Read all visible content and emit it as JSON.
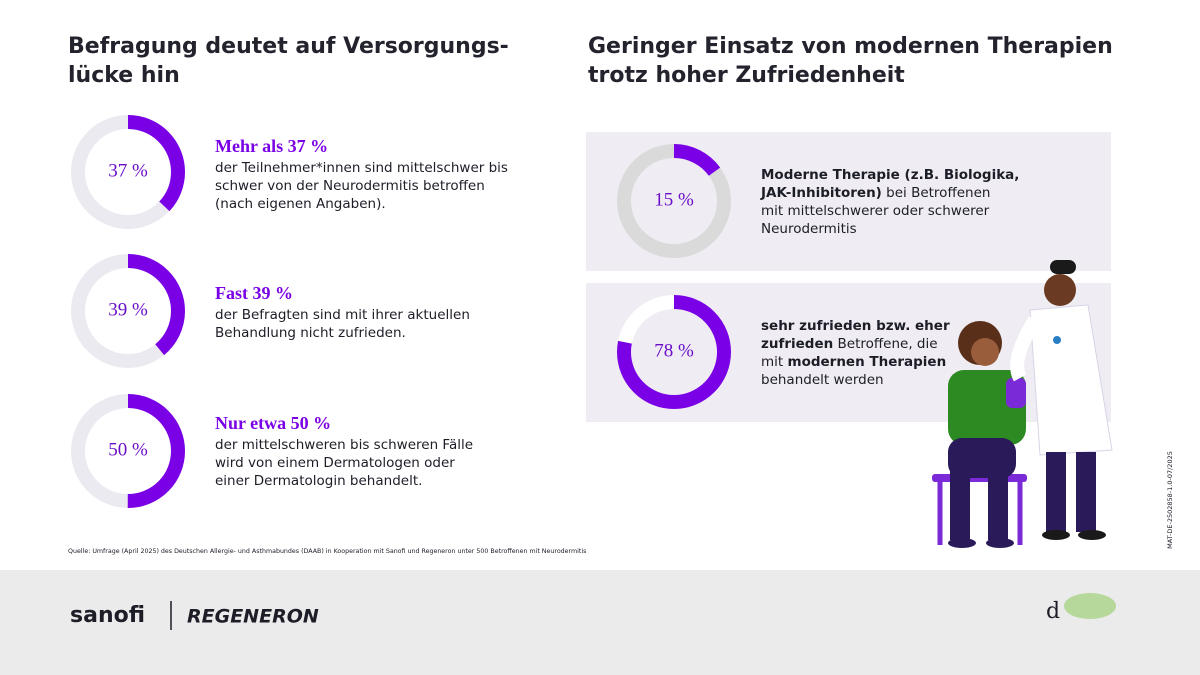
{
  "left_title": [
    "Befragung deutet auf Versorgungs-",
    "lücke hin"
  ],
  "right_title": [
    "Geringer Einsatz von modernen Therapien",
    "trotz hoher Zufriedenheit"
  ],
  "chart_data": [
    {
      "type": "donut",
      "values": [
        37
      ],
      "value_labels": [
        "37 %"
      ],
      "ylim": [
        0,
        100
      ],
      "color": "#7a00e6"
    },
    {
      "type": "donut",
      "values": [
        39
      ],
      "value_labels": [
        "39 %"
      ],
      "ylim": [
        0,
        100
      ],
      "color": "#7a00e6"
    },
    {
      "type": "donut",
      "values": [
        50
      ],
      "value_labels": [
        "50 %"
      ],
      "ylim": [
        0,
        100
      ],
      "color": "#7a00e6"
    },
    {
      "type": "donut",
      "values": [
        15
      ],
      "value_labels": [
        "15 %"
      ],
      "ylim": [
        0,
        100
      ],
      "color": "#7a00e6"
    },
    {
      "type": "donut",
      "values": [
        78
      ],
      "value_labels": [
        "78 %"
      ],
      "ylim": [
        0,
        100
      ],
      "color": "#7a00e6"
    }
  ],
  "left_items": [
    {
      "heading": "Mehr als 37 %",
      "lines": [
        "der Teilnehmer*innen sind mittelschwer bis",
        "schwer von der Neurodermitis betroffen",
        "(nach eigenen Angaben)."
      ]
    },
    {
      "heading": "Fast 39 %",
      "lines": [
        "der Befragten sind mit ihrer aktuellen",
        "Behandlung nicht zufrieden."
      ]
    },
    {
      "heading": "Nur etwa 50 %",
      "lines": [
        "der mittelschweren bis schweren Fälle",
        "wird von einem Dermatologen oder",
        "einer Dermatologin behandelt."
      ]
    }
  ],
  "right_items": [
    {
      "lines": [
        [
          {
            "text": "Moderne Therapie (z.B. Biologika,",
            "bold": true
          }
        ],
        [
          {
            "text": "JAK-Inhibitoren)",
            "bold": true
          },
          {
            "text": " bei Betroffenen"
          }
        ],
        [
          {
            "text": "mit mittelschwerer oder schwerer"
          }
        ],
        [
          {
            "text": "Neurodermitis"
          }
        ]
      ]
    },
    {
      "lines": [
        [
          {
            "text": "sehr zufrieden bzw. eher",
            "bold": true
          }
        ],
        [
          {
            "text": "zufrieden",
            "bold": true
          },
          {
            "text": " Betroffene, die"
          }
        ],
        [
          {
            "text": "mit "
          },
          {
            "text": "modernen Therapien",
            "bold": true
          }
        ],
        [
          {
            "text": "behandelt werden"
          }
        ]
      ]
    }
  ],
  "source": "Quelle: Umfrage (April 2025) des Deutschen Allergie- und Asthmabundes (DAAB) in Kooperation mit Sanofi und Regeneron unter 500 Betroffenen mit Neurodermitis",
  "code": "MAT-DE-2502858-1.0-07/2025",
  "logos": {
    "sanofi": "sanofi",
    "regeneron": "REGENERON"
  }
}
